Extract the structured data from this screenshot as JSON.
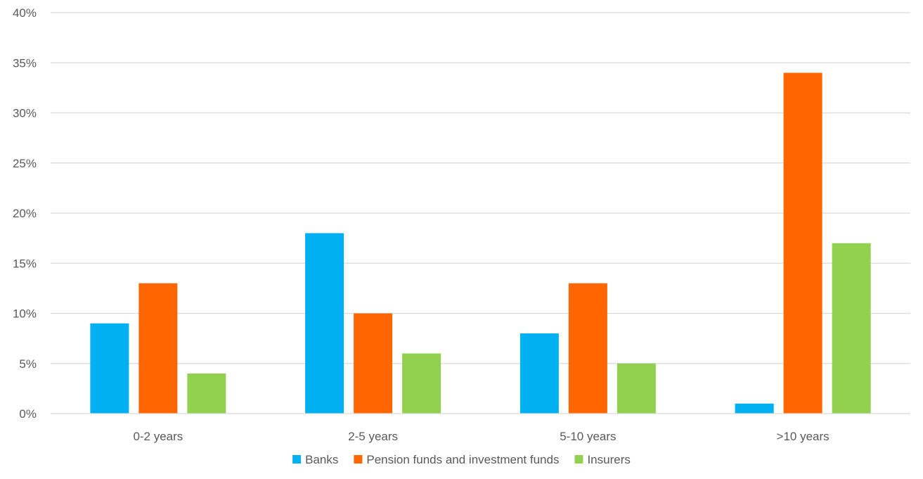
{
  "chart_data": {
    "type": "bar",
    "title": "",
    "xlabel": "",
    "ylabel": "",
    "categories": [
      "0-2 years",
      "2-5 years",
      "5-10 years",
      ">10 years"
    ],
    "series": [
      {
        "name": "Banks",
        "color": "#00B0F0",
        "values": [
          9,
          18,
          8,
          1
        ]
      },
      {
        "name": "Pension funds and investment funds",
        "color": "#FF6600",
        "values": [
          13,
          10,
          13,
          34
        ]
      },
      {
        "name": "Insurers",
        "color": "#92D050",
        "values": [
          4,
          6,
          5,
          17
        ]
      }
    ],
    "ylim": [
      0,
      40
    ],
    "y_ticks": [
      0,
      5,
      10,
      15,
      20,
      25,
      30,
      35,
      40
    ],
    "y_tick_labels": [
      "0%",
      "5%",
      "10%",
      "15%",
      "20%",
      "25%",
      "30%",
      "35%",
      "40%"
    ],
    "grid": true,
    "legend_position": "bottom"
  }
}
